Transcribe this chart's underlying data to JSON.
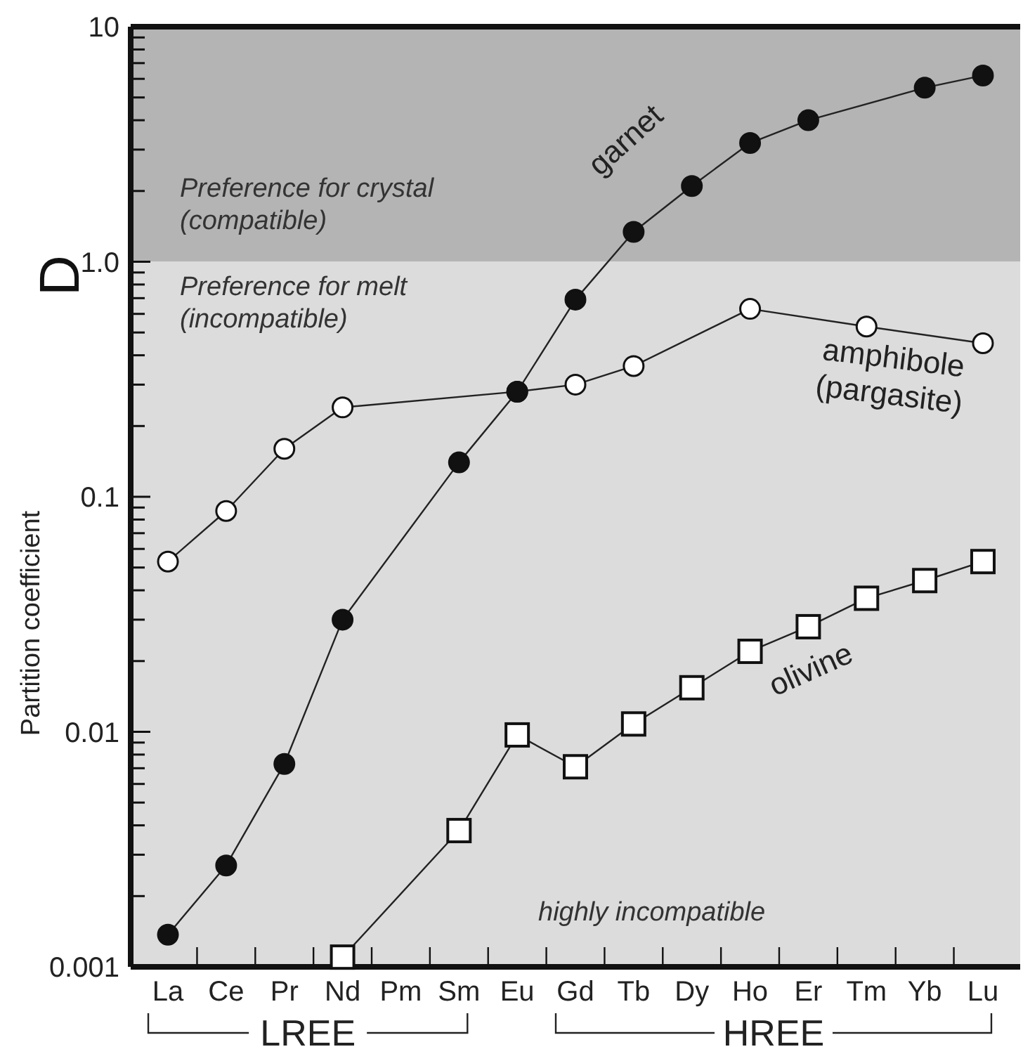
{
  "chart_data": {
    "type": "line",
    "ylabel": "Partition coefficient",
    "log": "y",
    "legend": false,
    "grid": false,
    "categories": [
      "La",
      "Ce",
      "Pr",
      "Nd",
      "Pm",
      "Sm",
      "Eu",
      "Gd",
      "Tb",
      "Dy",
      "Ho",
      "Er",
      "Tm",
      "Yb",
      "Lu"
    ],
    "ylim": [
      0.001,
      10
    ],
    "yticks": [
      0.001,
      {
        "value": 0.002,
        "label": null
      },
      {
        "value": 0.003,
        "label": null
      },
      {
        "value": 0.004,
        "label": null
      },
      {
        "value": 0.005,
        "label": null
      },
      {
        "value": 0.006,
        "label": null
      },
      {
        "value": 0.007,
        "label": null
      },
      {
        "value": 0.008,
        "label": null
      },
      {
        "value": 0.009,
        "label": null
      },
      0.01,
      {
        "value": 0.02,
        "label": null
      },
      {
        "value": 0.03,
        "label": null
      },
      {
        "value": 0.04,
        "label": null
      },
      {
        "value": 0.05,
        "label": null
      },
      {
        "value": 0.06,
        "label": null
      },
      {
        "value": 0.07,
        "label": null
      },
      {
        "value": 0.08,
        "label": null
      },
      {
        "value": 0.09,
        "label": null
      },
      0.1,
      {
        "value": 0.2,
        "label": null
      },
      {
        "value": 0.3,
        "label": null
      },
      {
        "value": 0.4,
        "label": null
      },
      {
        "value": 0.5,
        "label": null
      },
      {
        "value": 0.6,
        "label": null
      },
      {
        "value": 0.7,
        "label": null
      },
      {
        "value": 0.8,
        "label": null
      },
      {
        "value": 0.9,
        "label": null
      },
      {
        "value": 1,
        "label": "1.0"
      },
      {
        "value": 2,
        "label": null
      },
      {
        "value": 3,
        "label": null
      },
      {
        "value": 4,
        "label": null
      },
      {
        "value": 5,
        "label": null
      },
      {
        "value": 6,
        "label": null
      },
      {
        "value": 7,
        "label": null
      },
      {
        "value": 8,
        "label": null
      },
      {
        "value": 9,
        "label": null
      },
      10
    ],
    "bands": [
      {
        "axis": "y",
        "from": 1,
        "to": 10,
        "color": "#b4b4b4",
        "label": "Preference for crystal\n(compatible)"
      },
      {
        "axis": "y",
        "from": 0.001,
        "to": 1,
        "color": "#dcdcdc",
        "label": "Preference for melt\n(incompatible)"
      }
    ],
    "series": [
      {
        "name": "garnet",
        "color": "#111111",
        "marker": "circle",
        "values": [
          0.00137,
          0.0027,
          0.0073,
          0.03,
          null,
          0.14,
          0.28,
          0.69,
          1.34,
          2.1,
          3.2,
          4.0,
          null,
          5.5,
          6.2
        ]
      },
      {
        "name": "amphibole\n(pargasite)",
        "color": "#ffffff",
        "marker": "circle",
        "values": [
          0.053,
          0.087,
          0.16,
          0.24,
          null,
          null,
          0.28,
          0.3,
          0.36,
          null,
          0.63,
          null,
          0.53,
          null,
          0.45
        ]
      },
      {
        "name": "olivine",
        "color": "#ffffff",
        "marker": "square",
        "values": [
          null,
          null,
          null,
          0.0011,
          null,
          0.0038,
          0.0097,
          0.0071,
          0.0108,
          0.0154,
          0.022,
          0.028,
          0.037,
          0.044,
          0.053
        ]
      }
    ],
    "annotations": [
      "D",
      "highly incompatible",
      "LREE",
      "HREE"
    ]
  }
}
